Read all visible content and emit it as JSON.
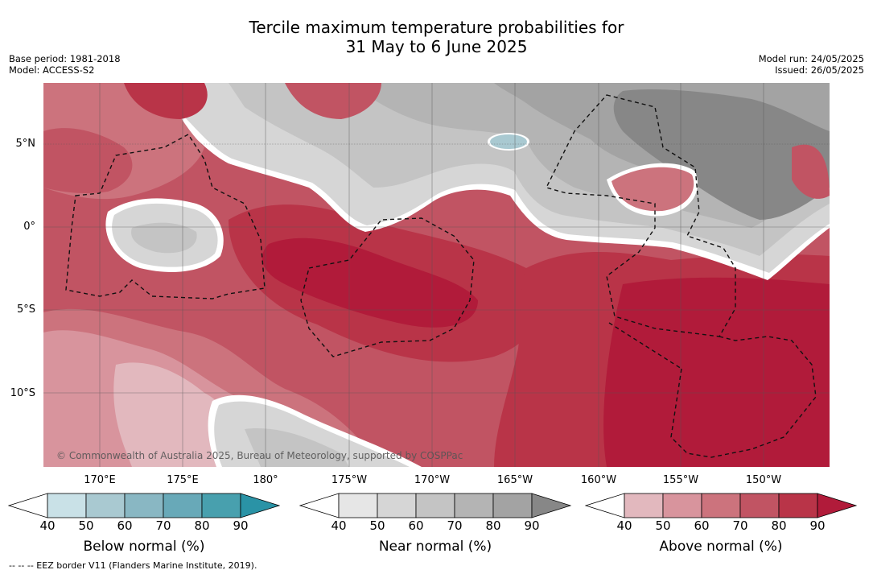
{
  "title_line1": "Tercile maximum temperature probabilities for",
  "title_line2": "31 May to 6 June 2025",
  "meta_left": {
    "base_period": "Base period: 1981-2018",
    "model": "Model: ACCESS-S2"
  },
  "meta_right": {
    "model_run": "Model run: 24/05/2025",
    "issued": "Issued: 26/05/2025"
  },
  "latitude_labels": [
    "5°N",
    "0°",
    "5°S",
    "10°S"
  ],
  "longitude_labels": [
    "170°E",
    "175°E",
    "180°",
    "175°W",
    "170°W",
    "165°W",
    "160°W",
    "155°W",
    "150°W"
  ],
  "copyright": "© Commonwealth of Australia 2025, Bureau of Meteorology, supported by COSPPac",
  "legends": [
    {
      "title": "Below normal (%)",
      "ticks": [
        "40",
        "50",
        "60",
        "70",
        "80",
        "90"
      ],
      "colors": [
        "#c9e1e7",
        "#a9c9d1",
        "#89b7c3",
        "#68a9b8",
        "#48a0ae",
        "#2a93a6"
      ]
    },
    {
      "title": "Near normal (%)",
      "ticks": [
        "40",
        "50",
        "60",
        "70",
        "80",
        "90"
      ],
      "colors": [
        "#e6e6e6",
        "#d6d6d6",
        "#c4c4c4",
        "#b4b4b4",
        "#a3a3a3",
        "#878787"
      ]
    },
    {
      "title": "Above normal (%)",
      "ticks": [
        "40",
        "50",
        "60",
        "70",
        "80",
        "90"
      ],
      "colors": [
        "#e2b8be",
        "#d8949d",
        "#cc737d",
        "#c15463",
        "#b93448",
        "#b11b3a"
      ]
    }
  ],
  "eez_note": "--  --  -- EEZ border V11 (Flanders Marine Institute, 2019).",
  "colors": {
    "above_40": "#e2b8be",
    "above_50": "#d8949d",
    "above_60": "#cc737d",
    "above_70": "#c15463",
    "above_80": "#b93448",
    "above_90": "#b11b3a",
    "near_40": "#e6e6e6",
    "near_50": "#d6d6d6",
    "near_60": "#c4c4c4",
    "near_70": "#b4b4b4",
    "near_80": "#a3a3a3",
    "near_90": "#878787",
    "below_50": "#a9c9d1"
  }
}
